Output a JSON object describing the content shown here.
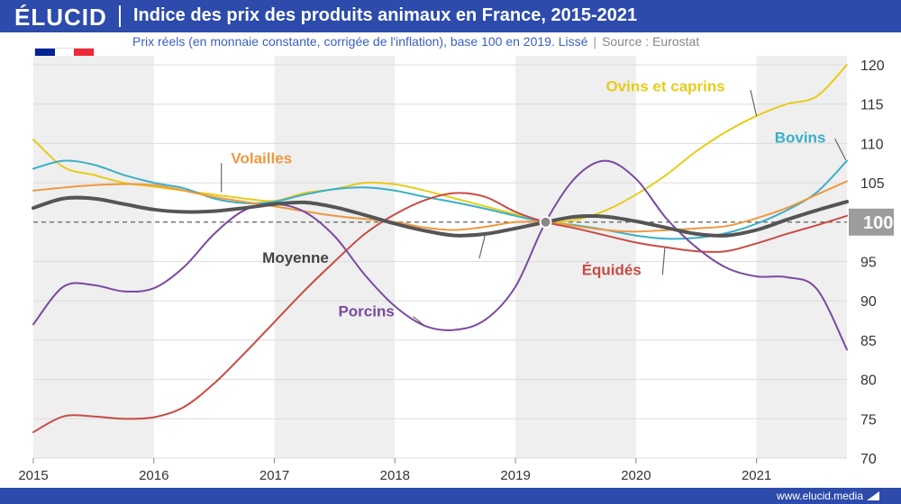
{
  "brand": {
    "logo": "ÉLUCID",
    "url": "www.elucid.media"
  },
  "title": "Indice des prix des produits animaux en France, 2015-2021",
  "subtitle": "Prix réels (en monnaie constante, corrigée de l'inflation), base 100 en 2019. Lissé",
  "source_sep": "|",
  "source": "Source : Eurostat",
  "flag": {
    "colors": [
      "#002395",
      "#ffffff",
      "#ed2939"
    ]
  },
  "colors": {
    "brand_blue": "#2c4bab",
    "band": "#efefef",
    "grid": "#dcdcdc",
    "highlight_label_bg": "#9c9c9c"
  },
  "chart_data": {
    "type": "line",
    "xlim": [
      2015,
      2021.75
    ],
    "ylim": [
      70,
      120
    ],
    "x_ticks": [
      2015,
      2016,
      2017,
      2018,
      2019,
      2020,
      2021
    ],
    "y_ticks": [
      70,
      75,
      80,
      85,
      90,
      95,
      100,
      105,
      110,
      115,
      120
    ],
    "y_axis_position": "right",
    "reference_line": 100,
    "highlight_tick": 100,
    "base_point": {
      "x": 2019.25,
      "y": 100
    },
    "series": [
      {
        "name": "Ovins et caprins",
        "color": "#e6cc1a",
        "width": 2,
        "points": [
          [
            2015,
            110.5
          ],
          [
            2015.25,
            107
          ],
          [
            2015.5,
            106
          ],
          [
            2015.75,
            105
          ],
          [
            2016,
            104.5
          ],
          [
            2016.5,
            103.5
          ],
          [
            2016.75,
            103
          ],
          [
            2017,
            102.7
          ],
          [
            2017.25,
            103.7
          ],
          [
            2017.5,
            104.2
          ],
          [
            2017.75,
            105
          ],
          [
            2018,
            104.8
          ],
          [
            2018.25,
            104
          ],
          [
            2018.5,
            103
          ],
          [
            2018.75,
            102
          ],
          [
            2019,
            101
          ],
          [
            2019.25,
            100
          ],
          [
            2019.5,
            100.3
          ],
          [
            2019.75,
            101.5
          ],
          [
            2020,
            103.5
          ],
          [
            2020.25,
            106
          ],
          [
            2020.5,
            109
          ],
          [
            2020.75,
            111.5
          ],
          [
            2021,
            113.5
          ],
          [
            2021.25,
            115
          ],
          [
            2021.5,
            116
          ],
          [
            2021.75,
            120
          ]
        ]
      },
      {
        "name": "Bovins",
        "color": "#3aafc8",
        "width": 2,
        "points": [
          [
            2015,
            106.8
          ],
          [
            2015.25,
            107.8
          ],
          [
            2015.5,
            107.3
          ],
          [
            2015.75,
            106
          ],
          [
            2016,
            105
          ],
          [
            2016.25,
            104.3
          ],
          [
            2016.5,
            103
          ],
          [
            2016.75,
            102.4
          ],
          [
            2017,
            102.6
          ],
          [
            2017.25,
            103.5
          ],
          [
            2017.5,
            104.2
          ],
          [
            2017.75,
            104.4
          ],
          [
            2018,
            104
          ],
          [
            2018.25,
            103.2
          ],
          [
            2018.5,
            102.5
          ],
          [
            2018.75,
            101.7
          ],
          [
            2019,
            100.8
          ],
          [
            2019.25,
            100
          ],
          [
            2019.5,
            99.6
          ],
          [
            2019.75,
            99
          ],
          [
            2020,
            98.3
          ],
          [
            2020.25,
            97.9
          ],
          [
            2020.5,
            98
          ],
          [
            2020.75,
            98.6
          ],
          [
            2021,
            99.8
          ],
          [
            2021.25,
            101.5
          ],
          [
            2021.5,
            103.8
          ],
          [
            2021.75,
            107.8
          ]
        ]
      },
      {
        "name": "Volailles",
        "color": "#ee9840",
        "width": 2,
        "points": [
          [
            2015,
            104
          ],
          [
            2015.5,
            104.7
          ],
          [
            2016,
            104.7
          ],
          [
            2016.5,
            103.2
          ],
          [
            2017,
            102
          ],
          [
            2017.5,
            100.8
          ],
          [
            2018,
            100
          ],
          [
            2018.25,
            99.3
          ],
          [
            2018.5,
            99
          ],
          [
            2018.75,
            99.4
          ],
          [
            2019,
            100
          ],
          [
            2019.25,
            100
          ],
          [
            2019.5,
            99.5
          ],
          [
            2019.75,
            99
          ],
          [
            2020,
            98.8
          ],
          [
            2020.5,
            99.2
          ],
          [
            2020.75,
            99.5
          ],
          [
            2021,
            100.5
          ],
          [
            2021.25,
            101.8
          ],
          [
            2021.5,
            103.5
          ],
          [
            2021.75,
            105.2
          ]
        ]
      },
      {
        "name": "Équidés",
        "color": "#c84b44",
        "width": 2,
        "points": [
          [
            2015,
            73.3
          ],
          [
            2015.25,
            75.3
          ],
          [
            2015.5,
            75.3
          ],
          [
            2015.75,
            75
          ],
          [
            2016,
            75.2
          ],
          [
            2016.25,
            76.5
          ],
          [
            2016.5,
            79.5
          ],
          [
            2016.75,
            83.3
          ],
          [
            2017,
            87.3
          ],
          [
            2017.25,
            91.3
          ],
          [
            2017.5,
            95
          ],
          [
            2017.75,
            98.5
          ],
          [
            2018,
            101
          ],
          [
            2018.25,
            102.8
          ],
          [
            2018.5,
            103.7
          ],
          [
            2018.75,
            103.2
          ],
          [
            2019,
            101.3
          ],
          [
            2019.25,
            100
          ],
          [
            2019.5,
            99.2
          ],
          [
            2019.75,
            98.3
          ],
          [
            2020,
            97.4
          ],
          [
            2020.25,
            96.8
          ],
          [
            2020.5,
            96.3
          ],
          [
            2020.75,
            96.3
          ],
          [
            2021,
            97.3
          ],
          [
            2021.25,
            98.5
          ],
          [
            2021.5,
            99.6
          ],
          [
            2021.75,
            100.8
          ]
        ]
      },
      {
        "name": "Porcins",
        "color": "#7a49a0",
        "width": 2,
        "points": [
          [
            2015,
            87
          ],
          [
            2015.25,
            91.8
          ],
          [
            2015.5,
            92
          ],
          [
            2015.75,
            91.2
          ],
          [
            2016,
            91.6
          ],
          [
            2016.25,
            94.3
          ],
          [
            2016.5,
            98.5
          ],
          [
            2016.75,
            101.5
          ],
          [
            2017,
            102.3
          ],
          [
            2017.25,
            101.3
          ],
          [
            2017.5,
            98.2
          ],
          [
            2017.75,
            93.3
          ],
          [
            2018,
            89.3
          ],
          [
            2018.25,
            86.8
          ],
          [
            2018.5,
            86.3
          ],
          [
            2018.75,
            87.6
          ],
          [
            2019,
            91.8
          ],
          [
            2019.25,
            100
          ],
          [
            2019.5,
            105.7
          ],
          [
            2019.75,
            107.8
          ],
          [
            2020,
            105.5
          ],
          [
            2020.25,
            100.5
          ],
          [
            2020.5,
            96.8
          ],
          [
            2020.75,
            94.2
          ],
          [
            2021,
            93.1
          ],
          [
            2021.25,
            93
          ],
          [
            2021.5,
            91.5
          ],
          [
            2021.75,
            83.8
          ]
        ]
      },
      {
        "name": "Moyenne",
        "color": "#555555",
        "width": 4,
        "points": [
          [
            2015,
            101.8
          ],
          [
            2015.25,
            103
          ],
          [
            2015.5,
            103
          ],
          [
            2015.75,
            102.3
          ],
          [
            2016,
            101.6
          ],
          [
            2016.25,
            101.3
          ],
          [
            2016.5,
            101.4
          ],
          [
            2016.75,
            101.8
          ],
          [
            2017,
            102.3
          ],
          [
            2017.25,
            102.5
          ],
          [
            2017.5,
            101.9
          ],
          [
            2017.75,
            100.9
          ],
          [
            2018,
            99.8
          ],
          [
            2018.25,
            98.9
          ],
          [
            2018.5,
            98.3
          ],
          [
            2018.75,
            98.5
          ],
          [
            2019,
            99.2
          ],
          [
            2019.25,
            100
          ],
          [
            2019.5,
            100.7
          ],
          [
            2019.75,
            100.7
          ],
          [
            2020,
            100.1
          ],
          [
            2020.25,
            99.3
          ],
          [
            2020.5,
            98.5
          ],
          [
            2020.75,
            98.3
          ],
          [
            2021,
            99
          ],
          [
            2021.25,
            100.3
          ],
          [
            2021.5,
            101.5
          ],
          [
            2021.75,
            102.6
          ]
        ]
      }
    ],
    "annotations": [
      {
        "series": "Ovins et caprins",
        "text": "Ovins et caprins",
        "at": [
          2019.75,
          116.6
        ],
        "pointer_from": [
          2020.95,
          116.8
        ],
        "pointer_to": [
          2021.0,
          113.5
        ]
      },
      {
        "series": "Bovins",
        "text": "Bovins",
        "at": [
          2021.15,
          110.1
        ],
        "pointer_from": [
          2021.65,
          110.6
        ],
        "pointer_to": [
          2021.74,
          107.9
        ]
      },
      {
        "series": "Volailles",
        "text": "Volailles",
        "at": [
          2016.64,
          107.5
        ],
        "pointer_from": [
          2016.56,
          107.5
        ],
        "pointer_to": [
          2016.56,
          103.8
        ]
      },
      {
        "series": "Équidés",
        "text": "Équidés",
        "at": [
          2019.55,
          93.3
        ],
        "pointer_from": [
          2020.22,
          93.3
        ],
        "pointer_to": [
          2020.24,
          96.9
        ]
      },
      {
        "series": "Porcins",
        "text": "Porcins",
        "at": [
          2017.53,
          88.0
        ],
        "pointer_from": [
          2018.15,
          88.0
        ],
        "pointer_to": [
          2018.25,
          86.8
        ]
      },
      {
        "series": "Moyenne",
        "text": "Moyenne",
        "at": [
          2016.9,
          94.8
        ],
        "pointer_from": [
          2018.7,
          95.4
        ],
        "pointer_to": [
          2018.75,
          98.5
        ]
      }
    ]
  }
}
